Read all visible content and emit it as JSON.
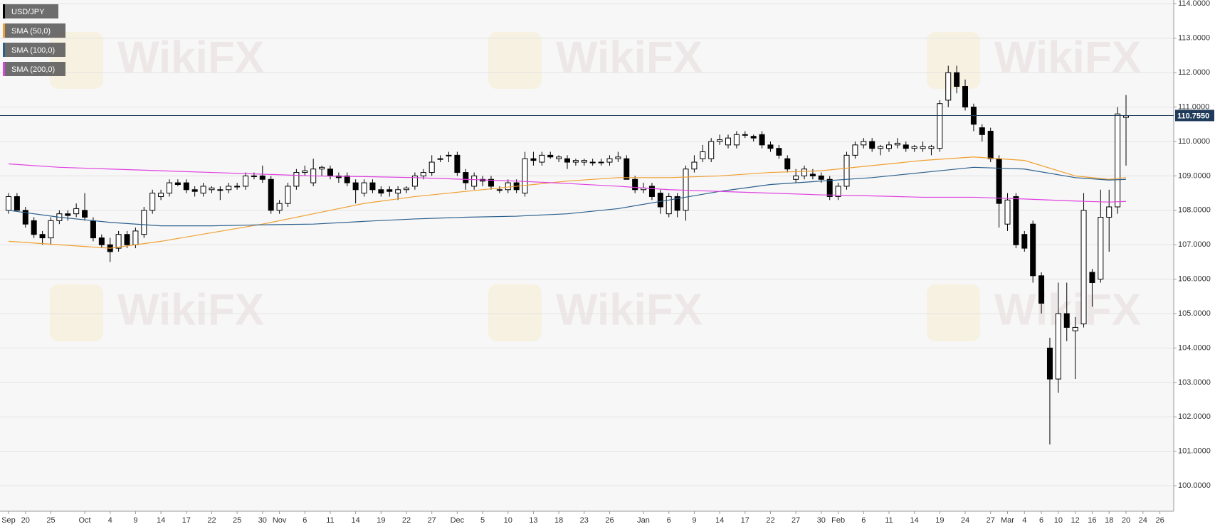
{
  "chart_data": {
    "type": "candlestick",
    "watermark": "WikiFX",
    "ylim": [
      99.26,
      114.11
    ],
    "yticks": [
      {
        "value": 100,
        "label": "100.0000"
      },
      {
        "value": 101,
        "label": "101.0000"
      },
      {
        "value": 102,
        "label": "102.0000"
      },
      {
        "value": 103,
        "label": "103.0000"
      },
      {
        "value": 104,
        "label": "104.0000"
      },
      {
        "value": 105,
        "label": "105.0000"
      },
      {
        "value": 106,
        "label": "106.0000"
      },
      {
        "value": 107,
        "label": "107.0000"
      },
      {
        "value": 108,
        "label": "108.0000"
      },
      {
        "value": 109,
        "label": "109.0000"
      },
      {
        "value": 110,
        "label": "110.0000"
      },
      {
        "value": 111,
        "label": "111.0000"
      },
      {
        "value": 112,
        "label": "112.0000"
      },
      {
        "value": 113,
        "label": "113.0000"
      },
      {
        "value": 114,
        "label": "114.0000"
      }
    ],
    "grid": true,
    "xticks": [
      {
        "value": 0,
        "label": "Sep"
      },
      {
        "value": 2,
        "label": "20"
      },
      {
        "value": 5,
        "label": "25"
      },
      {
        "value": 9,
        "label": "Oct"
      },
      {
        "value": 12,
        "label": "4"
      },
      {
        "value": 15,
        "label": "9"
      },
      {
        "value": 18,
        "label": "14"
      },
      {
        "value": 21,
        "label": "17"
      },
      {
        "value": 24,
        "label": "22"
      },
      {
        "value": 27,
        "label": "25"
      },
      {
        "value": 30,
        "label": "30"
      },
      {
        "value": 32,
        "label": "Nov"
      },
      {
        "value": 35,
        "label": "6"
      },
      {
        "value": 38,
        "label": "11"
      },
      {
        "value": 41,
        "label": "14"
      },
      {
        "value": 44,
        "label": "19"
      },
      {
        "value": 47,
        "label": "22"
      },
      {
        "value": 50,
        "label": "27"
      },
      {
        "value": 53,
        "label": "Dec"
      },
      {
        "value": 56,
        "label": "5"
      },
      {
        "value": 59,
        "label": "10"
      },
      {
        "value": 62,
        "label": "13"
      },
      {
        "value": 65,
        "label": "18"
      },
      {
        "value": 68,
        "label": "23"
      },
      {
        "value": 71,
        "label": "26"
      },
      {
        "value": 75,
        "label": "Jan"
      },
      {
        "value": 78,
        "label": "6"
      },
      {
        "value": 81,
        "label": "9"
      },
      {
        "value": 84,
        "label": "14"
      },
      {
        "value": 87,
        "label": "17"
      },
      {
        "value": 90,
        "label": "22"
      },
      {
        "value": 93,
        "label": "27"
      },
      {
        "value": 96,
        "label": "30"
      },
      {
        "value": 98,
        "label": "Feb"
      },
      {
        "value": 101,
        "label": "6"
      },
      {
        "value": 104,
        "label": "11"
      },
      {
        "value": 107,
        "label": "14"
      },
      {
        "value": 110,
        "label": "19"
      },
      {
        "value": 113,
        "label": "24"
      },
      {
        "value": 116,
        "label": "27"
      },
      {
        "value": 118,
        "label": "Mar"
      },
      {
        "value": 120,
        "label": "4"
      },
      {
        "value": 122,
        "label": "6"
      },
      {
        "value": 124,
        "label": "10"
      },
      {
        "value": 126,
        "label": "12"
      },
      {
        "value": 128,
        "label": "16"
      },
      {
        "value": 130,
        "label": "18"
      },
      {
        "value": 132,
        "label": "20"
      },
      {
        "value": 134,
        "label": "24"
      },
      {
        "value": 136,
        "label": "26"
      }
    ],
    "current_price": {
      "value": 110.755,
      "label": "110.7550",
      "color": "#1f3a5a"
    },
    "sma_x": [
      0,
      6,
      12,
      18,
      24,
      30,
      36,
      42,
      48,
      54,
      60,
      66,
      72,
      78,
      84,
      90,
      96,
      102,
      108,
      114,
      120,
      126,
      130,
      132
    ],
    "series": [
      {
        "name": "USD/JPY",
        "color": "#000000",
        "ohlc": [
          [
            108.0,
            108.5,
            107.9,
            108.4
          ],
          [
            108.4,
            108.5,
            108.0,
            108.0
          ],
          [
            108.0,
            108.1,
            107.5,
            107.6
          ],
          [
            107.7,
            107.8,
            107.2,
            107.3
          ],
          [
            107.3,
            107.4,
            107.0,
            107.2
          ],
          [
            107.2,
            107.8,
            107.0,
            107.7
          ],
          [
            107.7,
            108.0,
            107.6,
            107.9
          ],
          [
            107.9,
            108.0,
            107.7,
            107.85
          ],
          [
            107.9,
            108.2,
            107.8,
            108.05
          ],
          [
            108.0,
            108.5,
            107.7,
            107.8
          ],
          [
            107.7,
            107.8,
            107.1,
            107.2
          ],
          [
            107.2,
            107.3,
            106.9,
            107.0
          ],
          [
            107.0,
            107.2,
            106.5,
            106.8
          ],
          [
            106.9,
            107.4,
            106.8,
            107.3
          ],
          [
            107.3,
            107.4,
            106.9,
            107.0
          ],
          [
            107.0,
            107.5,
            106.9,
            107.4
          ],
          [
            107.3,
            108.1,
            107.2,
            108.0
          ],
          [
            108.0,
            108.6,
            107.9,
            108.5
          ],
          [
            108.4,
            108.6,
            108.3,
            108.5
          ],
          [
            108.5,
            108.9,
            108.4,
            108.8
          ],
          [
            108.8,
            108.9,
            108.7,
            108.75
          ],
          [
            108.8,
            108.9,
            108.5,
            108.6
          ],
          [
            108.6,
            108.7,
            108.4,
            108.55
          ],
          [
            108.5,
            108.8,
            108.4,
            108.7
          ],
          [
            108.6,
            108.7,
            108.5,
            108.65
          ],
          [
            108.6,
            108.7,
            108.3,
            108.6
          ],
          [
            108.6,
            108.8,
            108.5,
            108.7
          ],
          [
            108.7,
            108.8,
            108.6,
            108.7
          ],
          [
            108.7,
            109.1,
            108.6,
            109.0
          ],
          [
            109.0,
            109.1,
            108.9,
            109.0
          ],
          [
            109.0,
            109.3,
            108.8,
            108.9
          ],
          [
            108.9,
            109.0,
            107.9,
            108.0
          ],
          [
            108.0,
            108.3,
            107.9,
            108.2
          ],
          [
            108.2,
            108.8,
            108.1,
            108.7
          ],
          [
            108.7,
            109.2,
            108.6,
            109.1
          ],
          [
            109.1,
            109.3,
            109.0,
            109.15
          ],
          [
            108.8,
            109.5,
            108.7,
            109.2
          ],
          [
            109.2,
            109.3,
            109.0,
            109.25
          ],
          [
            109.2,
            109.3,
            108.9,
            109.0
          ],
          [
            109.0,
            109.1,
            108.8,
            108.95
          ],
          [
            109.0,
            109.1,
            108.7,
            108.8
          ],
          [
            108.8,
            108.9,
            108.2,
            108.6
          ],
          [
            108.5,
            108.9,
            108.4,
            108.8
          ],
          [
            108.8,
            108.9,
            108.5,
            108.6
          ],
          [
            108.6,
            108.7,
            108.4,
            108.5
          ],
          [
            108.6,
            108.7,
            108.4,
            108.55
          ],
          [
            108.5,
            108.7,
            108.3,
            108.6
          ],
          [
            108.6,
            108.7,
            108.5,
            108.65
          ],
          [
            108.7,
            109.1,
            108.6,
            109.0
          ],
          [
            109.0,
            109.2,
            108.9,
            109.1
          ],
          [
            109.1,
            109.6,
            109.0,
            109.4
          ],
          [
            109.5,
            109.6,
            109.4,
            109.5
          ],
          [
            109.6,
            109.7,
            109.4,
            109.6
          ],
          [
            109.6,
            109.7,
            109.0,
            109.1
          ],
          [
            109.1,
            109.2,
            108.6,
            108.8
          ],
          [
            108.7,
            109.1,
            108.6,
            109.0
          ],
          [
            108.9,
            109.0,
            108.7,
            108.85
          ],
          [
            108.9,
            109.0,
            108.6,
            108.7
          ],
          [
            108.6,
            108.7,
            108.5,
            108.6
          ],
          [
            108.6,
            108.9,
            108.5,
            108.8
          ],
          [
            108.8,
            108.9,
            108.5,
            108.6
          ],
          [
            108.5,
            109.7,
            108.4,
            109.5
          ],
          [
            109.5,
            109.7,
            109.3,
            109.45
          ],
          [
            109.4,
            109.7,
            109.3,
            109.6
          ],
          [
            109.6,
            109.7,
            109.5,
            109.55
          ],
          [
            109.5,
            109.6,
            109.4,
            109.55
          ],
          [
            109.5,
            109.6,
            109.2,
            109.4
          ],
          [
            109.4,
            109.5,
            109.3,
            109.45
          ],
          [
            109.4,
            109.5,
            109.3,
            109.45
          ],
          [
            109.4,
            109.5,
            109.3,
            109.4
          ],
          [
            109.4,
            109.5,
            109.3,
            109.4
          ],
          [
            109.4,
            109.6,
            109.3,
            109.5
          ],
          [
            109.5,
            109.7,
            109.4,
            109.55
          ],
          [
            109.5,
            109.6,
            108.9,
            108.9
          ],
          [
            108.9,
            109.0,
            108.5,
            108.6
          ],
          [
            108.6,
            108.8,
            108.5,
            108.65
          ],
          [
            108.7,
            108.8,
            108.3,
            108.4
          ],
          [
            108.5,
            108.6,
            107.9,
            108.1
          ],
          [
            107.9,
            108.5,
            107.8,
            108.4
          ],
          [
            108.4,
            108.5,
            107.8,
            108.0
          ],
          [
            108.0,
            109.3,
            107.7,
            109.2
          ],
          [
            109.2,
            109.6,
            109.1,
            109.4
          ],
          [
            109.5,
            109.9,
            109.4,
            109.7
          ],
          [
            109.5,
            110.1,
            109.4,
            110.0
          ],
          [
            110.0,
            110.2,
            109.9,
            110.05
          ],
          [
            109.9,
            110.2,
            109.8,
            110.1
          ],
          [
            109.9,
            110.3,
            109.8,
            110.2
          ],
          [
            110.2,
            110.3,
            110.1,
            110.2
          ],
          [
            110.15,
            110.2,
            110.0,
            110.1
          ],
          [
            110.2,
            110.3,
            109.8,
            109.9
          ],
          [
            109.9,
            110.0,
            109.7,
            109.8
          ],
          [
            109.8,
            109.9,
            109.5,
            109.6
          ],
          [
            109.5,
            109.6,
            109.1,
            109.2
          ],
          [
            108.9,
            109.2,
            108.8,
            109.0
          ],
          [
            109.0,
            109.3,
            108.9,
            109.2
          ],
          [
            109.05,
            109.2,
            108.9,
            109.0
          ],
          [
            109.0,
            109.1,
            108.8,
            108.9
          ],
          [
            108.9,
            109.0,
            108.3,
            108.4
          ],
          [
            108.4,
            108.8,
            108.3,
            108.7
          ],
          [
            108.7,
            109.7,
            108.6,
            109.6
          ],
          [
            109.6,
            110.0,
            109.5,
            109.9
          ],
          [
            109.9,
            110.1,
            109.8,
            110.0
          ],
          [
            110.0,
            110.1,
            109.7,
            109.8
          ],
          [
            109.8,
            109.9,
            109.6,
            109.85
          ],
          [
            109.8,
            110.0,
            109.7,
            109.9
          ],
          [
            109.9,
            110.1,
            109.8,
            109.95
          ],
          [
            109.9,
            110.0,
            109.7,
            109.8
          ],
          [
            109.8,
            109.9,
            109.7,
            109.85
          ],
          [
            109.8,
            110.0,
            109.7,
            109.85
          ],
          [
            109.8,
            109.9,
            109.6,
            109.85
          ],
          [
            109.8,
            111.2,
            109.7,
            111.1
          ],
          [
            111.2,
            112.2,
            111.0,
            112.0
          ],
          [
            112.0,
            112.2,
            111.4,
            111.6
          ],
          [
            111.6,
            111.8,
            110.9,
            111.0
          ],
          [
            111.0,
            111.1,
            110.3,
            110.5
          ],
          [
            110.4,
            110.5,
            110.0,
            110.2
          ],
          [
            110.3,
            110.4,
            109.4,
            109.5
          ],
          [
            109.5,
            109.6,
            107.5,
            108.2
          ],
          [
            107.6,
            108.5,
            107.4,
            108.3
          ],
          [
            108.4,
            108.5,
            106.9,
            107.0
          ],
          [
            107.3,
            107.4,
            106.8,
            106.9
          ],
          [
            107.6,
            107.7,
            105.9,
            106.1
          ],
          [
            106.1,
            106.2,
            105.0,
            105.3
          ],
          [
            104.0,
            104.3,
            101.2,
            103.1
          ],
          [
            103.1,
            105.9,
            102.7,
            105.0
          ],
          [
            105.0,
            105.9,
            104.2,
            104.6
          ],
          [
            104.5,
            104.9,
            103.1,
            104.6
          ],
          [
            104.7,
            108.5,
            104.6,
            108.0
          ],
          [
            106.2,
            106.3,
            105.2,
            105.9
          ],
          [
            106.0,
            108.6,
            105.9,
            107.8
          ],
          [
            107.8,
            108.6,
            106.8,
            108.1
          ],
          [
            108.1,
            111.0,
            107.9,
            110.8
          ],
          [
            110.7,
            111.35,
            109.3,
            110.75
          ]
        ]
      },
      {
        "name": "SMA (50,0)",
        "color": "#f0a030",
        "values": [
          107.1,
          107.0,
          106.9,
          107.1,
          107.35,
          107.6,
          107.9,
          108.2,
          108.4,
          108.55,
          108.7,
          108.85,
          108.95,
          108.95,
          109.0,
          109.1,
          109.15,
          109.3,
          109.45,
          109.55,
          109.45,
          109.0,
          108.9,
          108.95
        ]
      },
      {
        "name": "SMA (100,0)",
        "color": "#2b5f8c",
        "values": [
          108.0,
          107.8,
          107.65,
          107.55,
          107.55,
          107.58,
          107.6,
          107.68,
          107.75,
          107.8,
          107.83,
          107.9,
          108.05,
          108.3,
          108.55,
          108.75,
          108.85,
          108.95,
          109.1,
          109.25,
          109.2,
          108.95,
          108.88,
          108.9
        ]
      },
      {
        "name": "SMA (200,0)",
        "color": "#e040e0",
        "values": [
          109.35,
          109.25,
          109.2,
          109.15,
          109.1,
          109.05,
          109.0,
          108.98,
          108.95,
          108.9,
          108.85,
          108.78,
          108.7,
          108.6,
          108.55,
          108.5,
          108.45,
          108.42,
          108.38,
          108.38,
          108.33,
          108.27,
          108.24,
          108.26
        ]
      }
    ]
  }
}
